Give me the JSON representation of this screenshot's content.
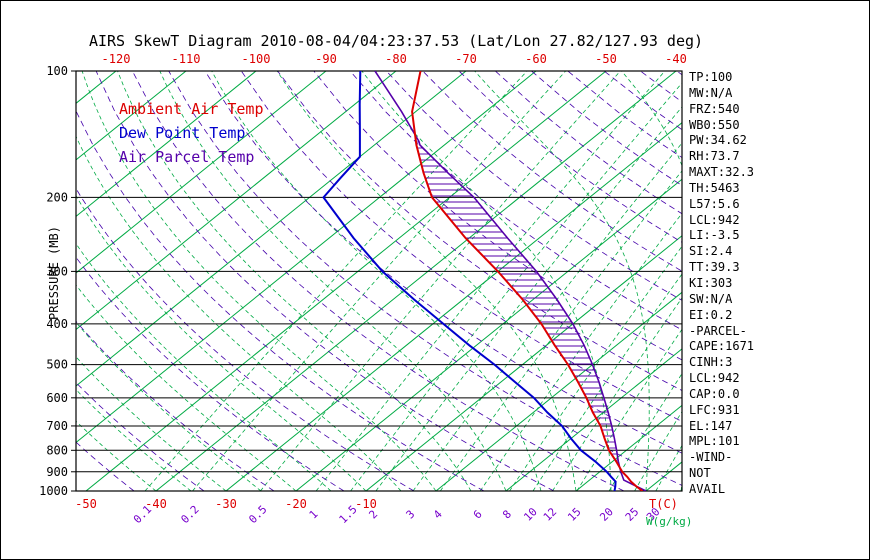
{
  "title": "AIRS SkewT Diagram 2010-08-04/04:23:37.53 (Lat/Lon 27.82/127.93 deg)",
  "legend": [
    {
      "label": "Ambient Air Temp",
      "color_key": "temp"
    },
    {
      "label": "Dew Point Temp",
      "color_key": "dewpoint"
    },
    {
      "label": "Air Parcel Temp",
      "color_key": "parcel"
    }
  ],
  "colors": {
    "temp": "#dd0000",
    "dewpoint": "#0000cd",
    "parcel": "#5500aa",
    "dry_adiabat": "#4400aa",
    "isotherm": "#00aa44",
    "mix_label": "#7700cc",
    "axis": "#000000"
  },
  "axes": {
    "pressure_label": "PRESSURE (MB)",
    "temp_axis_label": "T(C)",
    "mixratio_axis_label": "W(g/kg)",
    "pressure_ticks": [
      100,
      200,
      300,
      400,
      500,
      600,
      700,
      800,
      900,
      1000
    ],
    "top_temp_ticks": [
      -120,
      -110,
      -100,
      -90,
      -80,
      -70,
      -60,
      -50,
      -40
    ],
    "bottom_temp_ticks": [
      -50,
      -40,
      -30,
      -20,
      -10
    ],
    "isotherms_c": [
      -120,
      -110,
      -100,
      -90,
      -80,
      -70,
      -60,
      -50,
      -40,
      -30,
      -20,
      -10,
      0,
      10,
      20,
      30
    ],
    "dry_adiabats_k": [
      220,
      230,
      240,
      250,
      260,
      270,
      280,
      290,
      300,
      310,
      320,
      330,
      340,
      350,
      360,
      370,
      380,
      390,
      400,
      410,
      420,
      430,
      440,
      450
    ],
    "moist_adiabats_c": [
      -40,
      -35,
      -30,
      -25,
      -20,
      -15,
      -10,
      -5,
      0,
      5,
      10,
      15,
      20,
      25,
      30,
      35,
      40
    ],
    "mixing_ratio_values": [
      0.1,
      0.2,
      0.5,
      1,
      1.5,
      2,
      3,
      4,
      6,
      8,
      10,
      12,
      15,
      20,
      25,
      30,
      40
    ],
    "mixing_ratio_labels": [
      "0.1",
      "0.2",
      "0.5",
      "1",
      "1.5",
      "2",
      "3",
      "4",
      "6",
      "8",
      "10",
      "12",
      "15",
      "20",
      "25",
      "30"
    ]
  },
  "stats": [
    "TP:100",
    "MW:N/A",
    "FRZ:540",
    "WB0:550",
    "PW:34.62",
    "RH:73.7",
    "MAXT:32.3",
    "TH:5463",
    "L57:5.6",
    "LCL:942",
    "LI:-3.5",
    "SI:2.4",
    "TT:39.3",
    "KI:303",
    "SW:N/A",
    "EI:0.2",
    "-PARCEL-",
    "CAPE:1671",
    "CINH:3",
    "LCL:942",
    "CAP:0.0",
    "LFC:931",
    "EL:147",
    "MPL:101",
    "-WIND-",
    "NOT",
    "AVAIL"
  ],
  "chart_data": {
    "type": "line",
    "diagram": "skew-t log-p atmospheric sounding",
    "y_axis": {
      "label": "PRESSURE (MB)",
      "scale": "log",
      "range_mb": [
        100,
        1000
      ]
    },
    "x_axis": {
      "label": "T(C)",
      "top_range_c": [
        -120,
        -40
      ],
      "skew": "isotherms slant up-right 45deg"
    },
    "series": [
      {
        "name": "Ambient Air Temp",
        "color_key": "temp",
        "points": [
          [
            1000,
            29.5
          ],
          [
            975,
            27.8
          ],
          [
            950,
            26.2
          ],
          [
            925,
            24.8
          ],
          [
            900,
            23.2
          ],
          [
            850,
            20.5
          ],
          [
            800,
            17.5
          ],
          [
            750,
            14.8
          ],
          [
            700,
            12
          ],
          [
            650,
            8.5
          ],
          [
            600,
            5
          ],
          [
            550,
            1
          ],
          [
            500,
            -3.5
          ],
          [
            450,
            -8.8
          ],
          [
            400,
            -14.5
          ],
          [
            350,
            -21.5
          ],
          [
            300,
            -30
          ],
          [
            250,
            -40.5
          ],
          [
            200,
            -52.5
          ],
          [
            175,
            -58
          ],
          [
            150,
            -64
          ],
          [
            125,
            -70.5
          ],
          [
            100,
            -76.5
          ]
        ]
      },
      {
        "name": "Dew Point Temp",
        "color_key": "dewpoint",
        "points": [
          [
            1000,
            25.5
          ],
          [
            975,
            24.8
          ],
          [
            950,
            24
          ],
          [
            925,
            22.5
          ],
          [
            900,
            21
          ],
          [
            850,
            17.5
          ],
          [
            800,
            13.5
          ],
          [
            750,
            10
          ],
          [
            700,
            6.5
          ],
          [
            650,
            2
          ],
          [
            600,
            -2.5
          ],
          [
            550,
            -8
          ],
          [
            500,
            -14
          ],
          [
            450,
            -21
          ],
          [
            400,
            -28.5
          ],
          [
            350,
            -37
          ],
          [
            300,
            -46.5
          ],
          [
            250,
            -56.5
          ],
          [
            200,
            -68
          ],
          [
            180,
            -69
          ],
          [
            160,
            -70
          ],
          [
            140,
            -74.3
          ],
          [
            120,
            -79.3
          ],
          [
            100,
            -85.1
          ]
        ]
      },
      {
        "name": "Air Parcel Temp",
        "color_key": "parcel",
        "points": [
          [
            1000,
            30
          ],
          [
            942,
            24.9
          ],
          [
            900,
            23
          ],
          [
            850,
            20.8
          ],
          [
            800,
            18.6
          ],
          [
            750,
            16.2
          ],
          [
            700,
            13.6
          ],
          [
            650,
            10.7
          ],
          [
            600,
            7.5
          ],
          [
            550,
            4
          ],
          [
            500,
            0
          ],
          [
            450,
            -4.6
          ],
          [
            400,
            -10
          ],
          [
            350,
            -16.6
          ],
          [
            300,
            -24.5
          ],
          [
            250,
            -34.5
          ],
          [
            200,
            -46.5
          ],
          [
            175,
            -54.5
          ],
          [
            150,
            -63.5
          ],
          [
            147,
            -64.3
          ],
          [
            125,
            -72
          ],
          [
            100,
            -83
          ]
        ]
      }
    ],
    "cape_hatch_between": [
      "Ambient Air Temp",
      "Air Parcel Temp"
    ],
    "cape_pressure_range_mb": [
      147,
      931
    ]
  }
}
